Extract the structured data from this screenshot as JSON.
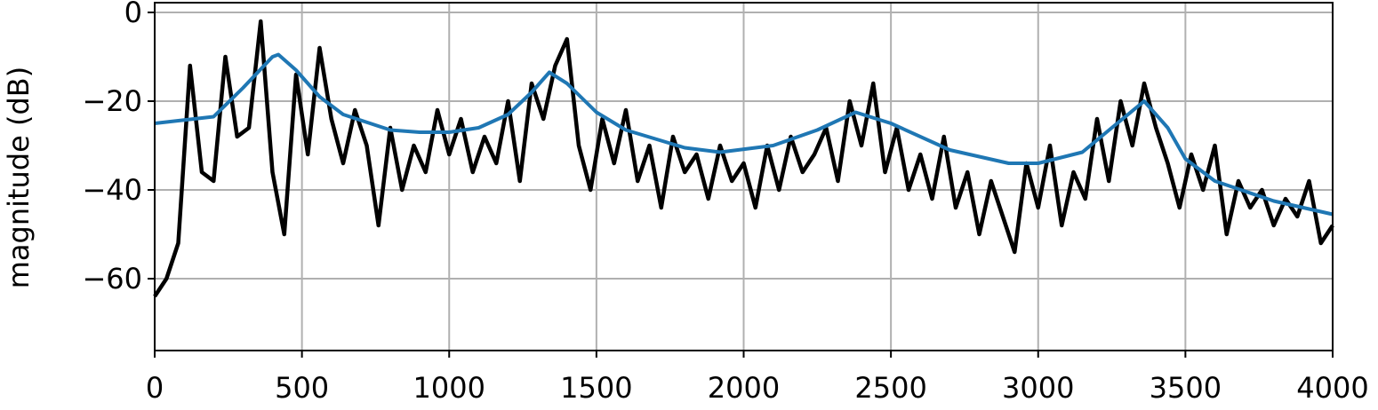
{
  "chart_data": {
    "type": "line",
    "ylabel": "magnitude (dB)",
    "xlim": [
      0,
      4000
    ],
    "xticks": [
      0,
      500,
      1000,
      1500,
      2000,
      2500,
      3000,
      3500,
      4000
    ],
    "ylim": [
      -76.2,
      2.2
    ],
    "yticks": [
      {
        "value": -60,
        "label": "−60"
      },
      {
        "value": -40,
        "label": "−40"
      },
      {
        "value": -20,
        "label": "−20"
      },
      0
    ],
    "grid": true,
    "series": [
      {
        "color": "#000000",
        "x": [
          0,
          40,
          80,
          120,
          160,
          200,
          240,
          280,
          320,
          360,
          400,
          440,
          480,
          520,
          560,
          600,
          640,
          680,
          720,
          760,
          800,
          840,
          880,
          920,
          960,
          1000,
          1040,
          1080,
          1120,
          1160,
          1200,
          1240,
          1280,
          1320,
          1360,
          1400,
          1440,
          1480,
          1520,
          1560,
          1600,
          1640,
          1680,
          1720,
          1760,
          1800,
          1840,
          1880,
          1920,
          1960,
          2000,
          2040,
          2080,
          2120,
          2160,
          2200,
          2240,
          2280,
          2320,
          2360,
          2400,
          2440,
          2480,
          2520,
          2560,
          2600,
          2640,
          2680,
          2720,
          2760,
          2800,
          2840,
          2880,
          2920,
          2960,
          3000,
          3040,
          3080,
          3120,
          3160,
          3200,
          3240,
          3280,
          3320,
          3360,
          3400,
          3440,
          3480,
          3520,
          3560,
          3600,
          3640,
          3680,
          3720,
          3760,
          3800,
          3840,
          3880,
          3920,
          3960,
          4000
        ],
        "values": [
          -64,
          -60,
          -52,
          -12,
          -36,
          -38,
          -10,
          -28,
          -26,
          -2,
          -36,
          -50,
          -14,
          -32,
          -8,
          -24,
          -34,
          -22,
          -30,
          -48,
          -26,
          -40,
          -30,
          -36,
          -22,
          -32,
          -24,
          -36,
          -28,
          -34,
          -20,
          -38,
          -16,
          -24,
          -12,
          -6,
          -30,
          -40,
          -24,
          -34,
          -22,
          -38,
          -30,
          -44,
          -28,
          -36,
          -32,
          -42,
          -30,
          -38,
          -34,
          -44,
          -30,
          -40,
          -28,
          -36,
          -32,
          -26,
          -38,
          -20,
          -30,
          -16,
          -36,
          -26,
          -40,
          -32,
          -42,
          -28,
          -44,
          -36,
          -50,
          -38,
          -46,
          -54,
          -34,
          -44,
          -30,
          -48,
          -36,
          -42,
          -24,
          -38,
          -20,
          -30,
          -16,
          -26,
          -34,
          -44,
          -32,
          -40,
          -30,
          -50,
          -38,
          -44,
          -40,
          -48,
          -42,
          -46,
          -38,
          -52,
          -48
        ]
      },
      {
        "color": "#1f77b4",
        "x": [
          0,
          200,
          300,
          400,
          420,
          480,
          560,
          640,
          800,
          900,
          1000,
          1100,
          1200,
          1280,
          1340,
          1400,
          1500,
          1600,
          1800,
          1920,
          2100,
          2250,
          2380,
          2500,
          2700,
          2900,
          3000,
          3150,
          3250,
          3360,
          3440,
          3500,
          3600,
          3800,
          4000
        ],
        "values": [
          -25,
          -23.5,
          -17,
          -10,
          -9.5,
          -13,
          -19,
          -23,
          -26.5,
          -27,
          -27,
          -26,
          -23,
          -18,
          -13.5,
          -16,
          -22.5,
          -26.5,
          -30.5,
          -31.5,
          -30,
          -26.5,
          -22.5,
          -25,
          -31,
          -34,
          -34,
          -31.5,
          -26,
          -20,
          -26,
          -33,
          -38,
          -42.5,
          -45.5
        ]
      }
    ]
  }
}
